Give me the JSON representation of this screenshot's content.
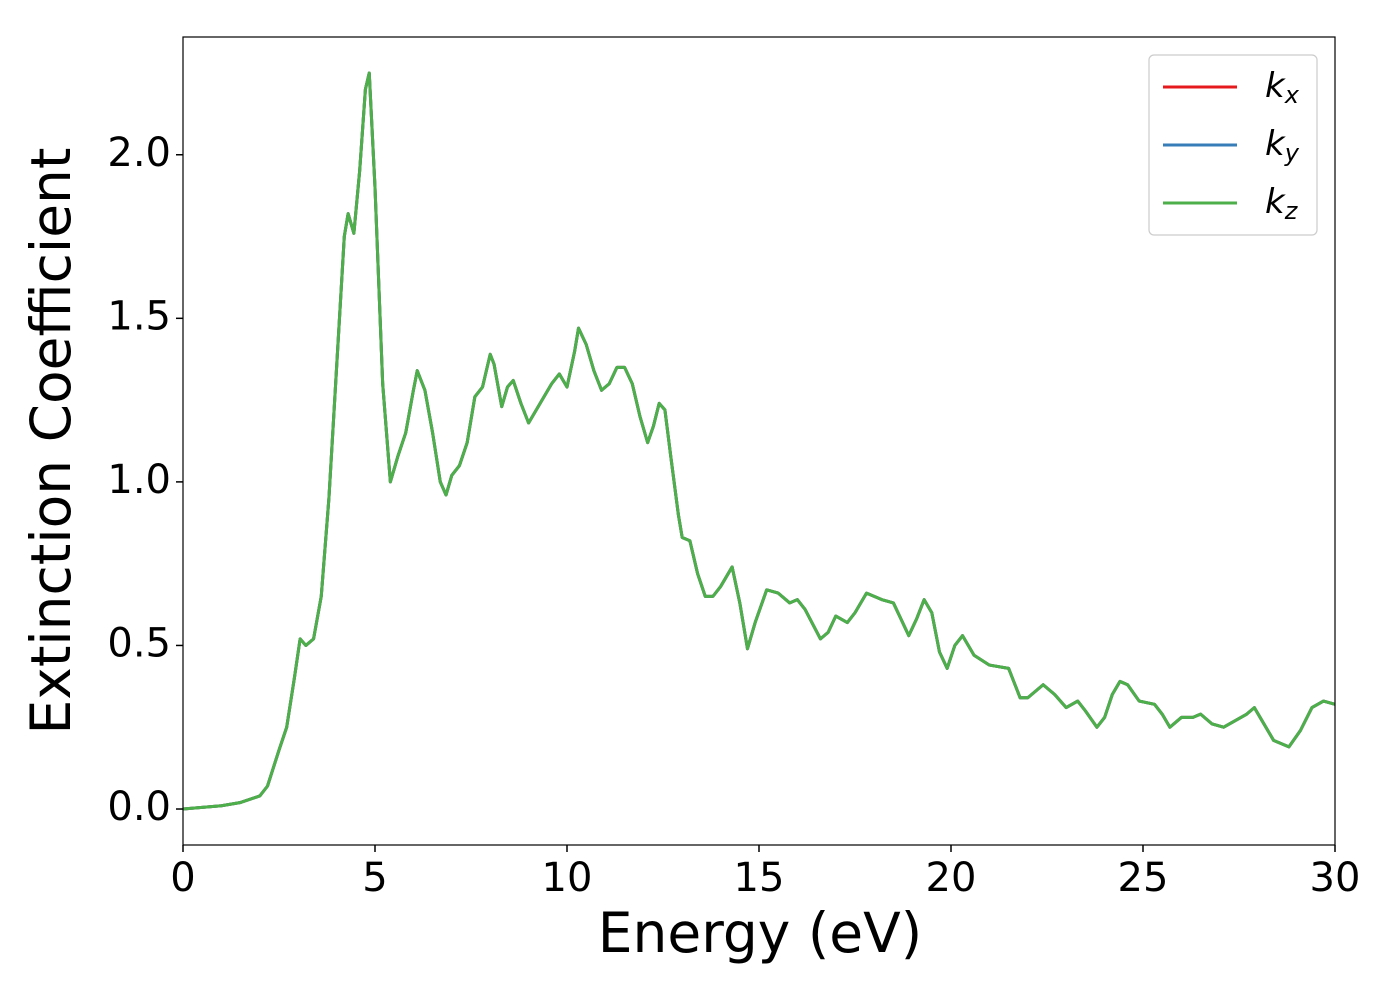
{
  "chart_data": {
    "type": "line",
    "xlabel": "Energy (eV)",
    "ylabel": "Extinction Coefficient",
    "xlim": [
      0,
      30
    ],
    "ylim": [
      -0.11,
      2.36
    ],
    "xticks": [
      0,
      5,
      10,
      15,
      20,
      25,
      30
    ],
    "yticks": [
      {
        "value": 0,
        "label": "0.0"
      },
      0.5,
      {
        "value": 1,
        "label": "1.0"
      },
      1.5,
      {
        "value": 2,
        "label": "2.0"
      }
    ],
    "legend": "upper right",
    "x": [
      0,
      1,
      1.5,
      2,
      2.2,
      2.5,
      2.7,
      2.9,
      3.05,
      3.2,
      3.4,
      3.6,
      3.8,
      4,
      4.2,
      4.3,
      4.45,
      4.6,
      4.75,
      4.85,
      5,
      5.2,
      5.4,
      5.6,
      5.8,
      6,
      6.1,
      6.3,
      6.5,
      6.7,
      6.85,
      7,
      7.2,
      7.4,
      7.6,
      7.8,
      8,
      8.1,
      8.3,
      8.45,
      8.6,
      8.8,
      9,
      9.3,
      9.6,
      9.8,
      10,
      10.2,
      10.3,
      10.5,
      10.7,
      10.9,
      11.1,
      11.3,
      11.5,
      11.7,
      11.9,
      12.1,
      12.25,
      12.4,
      12.55,
      12.7,
      12.9,
      13,
      13.2,
      13.4,
      13.6,
      13.8,
      14,
      14.3,
      14.5,
      14.7,
      14.9,
      15.2,
      15.5,
      15.8,
      16,
      16.2,
      16.6,
      16.8,
      17,
      17.3,
      17.5,
      17.8,
      18,
      18.2,
      18.5,
      18.7,
      18.9,
      19.1,
      19.3,
      19.5,
      19.7,
      19.9,
      20.1,
      20.3,
      20.6,
      21,
      21.5,
      21.8,
      22,
      22.4,
      22.7,
      23,
      23.3,
      23.5,
      23.8,
      24,
      24.2,
      24.4,
      24.6,
      24.9,
      25.3,
      25.5,
      25.7,
      26,
      26.3,
      26.5,
      26.8,
      27.1,
      27.4,
      27.7,
      27.9,
      28.1,
      28.4,
      28.8,
      29.1,
      29.4,
      29.7,
      30
    ],
    "series": [
      {
        "name": "kx",
        "color": "#e41a1c",
        "values": [
          0,
          0.01,
          0.02,
          0.04,
          0.07,
          0.18,
          0.25,
          0.4,
          0.52,
          0.5,
          0.52,
          0.65,
          0.95,
          1.35,
          1.75,
          1.82,
          1.76,
          1.95,
          2.2,
          2.25,
          1.9,
          1.3,
          1,
          1.08,
          1.15,
          1.28,
          1.34,
          1.28,
          1.15,
          1,
          0.96,
          1.02,
          1.05,
          1.12,
          1.26,
          1.29,
          1.39,
          1.36,
          1.23,
          1.29,
          1.31,
          1.24,
          1.18,
          1.24,
          1.3,
          1.33,
          1.29,
          1.4,
          1.47,
          1.42,
          1.34,
          1.28,
          1.3,
          1.35,
          1.35,
          1.3,
          1.2,
          1.12,
          1.17,
          1.24,
          1.22,
          1.08,
          0.9,
          0.83,
          0.82,
          0.72,
          0.65,
          0.65,
          0.68,
          0.74,
          0.63,
          0.49,
          0.57,
          0.67,
          0.66,
          0.63,
          0.64,
          0.61,
          0.52,
          0.54,
          0.59,
          0.57,
          0.6,
          0.66,
          0.65,
          0.64,
          0.63,
          0.58,
          0.53,
          0.58,
          0.64,
          0.6,
          0.48,
          0.43,
          0.5,
          0.53,
          0.47,
          0.44,
          0.43,
          0.34,
          0.34,
          0.38,
          0.35,
          0.31,
          0.33,
          0.3,
          0.25,
          0.28,
          0.35,
          0.39,
          0.38,
          0.33,
          0.32,
          0.29,
          0.25,
          0.28,
          0.28,
          0.29,
          0.26,
          0.25,
          0.27,
          0.29,
          0.31,
          0.27,
          0.21,
          0.19,
          0.24,
          0.31,
          0.33,
          0.32
        ]
      },
      {
        "name": "ky",
        "color": "#377eb8",
        "values": [
          0,
          0.01,
          0.02,
          0.04,
          0.07,
          0.18,
          0.25,
          0.4,
          0.52,
          0.5,
          0.52,
          0.65,
          0.95,
          1.35,
          1.75,
          1.82,
          1.76,
          1.95,
          2.2,
          2.25,
          1.9,
          1.3,
          1,
          1.08,
          1.15,
          1.28,
          1.34,
          1.28,
          1.15,
          1,
          0.96,
          1.02,
          1.05,
          1.12,
          1.26,
          1.29,
          1.39,
          1.36,
          1.23,
          1.29,
          1.31,
          1.24,
          1.18,
          1.24,
          1.3,
          1.33,
          1.29,
          1.4,
          1.47,
          1.42,
          1.34,
          1.28,
          1.3,
          1.35,
          1.35,
          1.3,
          1.2,
          1.12,
          1.17,
          1.24,
          1.22,
          1.08,
          0.9,
          0.83,
          0.82,
          0.72,
          0.65,
          0.65,
          0.68,
          0.74,
          0.63,
          0.49,
          0.57,
          0.67,
          0.66,
          0.63,
          0.64,
          0.61,
          0.52,
          0.54,
          0.59,
          0.57,
          0.6,
          0.66,
          0.65,
          0.64,
          0.63,
          0.58,
          0.53,
          0.58,
          0.64,
          0.6,
          0.48,
          0.43,
          0.5,
          0.53,
          0.47,
          0.44,
          0.43,
          0.34,
          0.34,
          0.38,
          0.35,
          0.31,
          0.33,
          0.3,
          0.25,
          0.28,
          0.35,
          0.39,
          0.38,
          0.33,
          0.32,
          0.29,
          0.25,
          0.28,
          0.28,
          0.29,
          0.26,
          0.25,
          0.27,
          0.29,
          0.31,
          0.27,
          0.21,
          0.19,
          0.24,
          0.31,
          0.33,
          0.32
        ]
      },
      {
        "name": "kz",
        "color": "#4daf4a",
        "values": [
          0,
          0.01,
          0.02,
          0.04,
          0.07,
          0.18,
          0.25,
          0.4,
          0.52,
          0.5,
          0.52,
          0.65,
          0.95,
          1.35,
          1.75,
          1.82,
          1.76,
          1.95,
          2.2,
          2.25,
          1.9,
          1.3,
          1,
          1.08,
          1.15,
          1.28,
          1.34,
          1.28,
          1.15,
          1,
          0.96,
          1.02,
          1.05,
          1.12,
          1.26,
          1.29,
          1.39,
          1.36,
          1.23,
          1.29,
          1.31,
          1.24,
          1.18,
          1.24,
          1.3,
          1.33,
          1.29,
          1.4,
          1.47,
          1.42,
          1.34,
          1.28,
          1.3,
          1.35,
          1.35,
          1.3,
          1.2,
          1.12,
          1.17,
          1.24,
          1.22,
          1.08,
          0.9,
          0.83,
          0.82,
          0.72,
          0.65,
          0.65,
          0.68,
          0.74,
          0.63,
          0.49,
          0.57,
          0.67,
          0.66,
          0.63,
          0.64,
          0.61,
          0.52,
          0.54,
          0.59,
          0.57,
          0.6,
          0.66,
          0.65,
          0.64,
          0.63,
          0.58,
          0.53,
          0.58,
          0.64,
          0.6,
          0.48,
          0.43,
          0.5,
          0.53,
          0.47,
          0.44,
          0.43,
          0.34,
          0.34,
          0.38,
          0.35,
          0.31,
          0.33,
          0.3,
          0.25,
          0.28,
          0.35,
          0.39,
          0.38,
          0.33,
          0.32,
          0.29,
          0.25,
          0.28,
          0.28,
          0.29,
          0.26,
          0.25,
          0.27,
          0.29,
          0.31,
          0.27,
          0.21,
          0.19,
          0.24,
          0.31,
          0.33,
          0.32
        ]
      }
    ]
  }
}
